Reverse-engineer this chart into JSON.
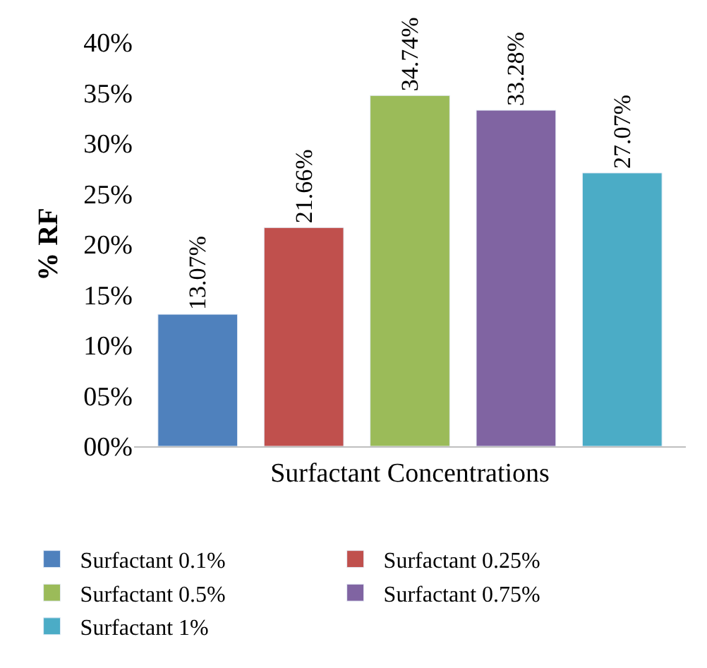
{
  "chart_data": {
    "type": "bar",
    "xlabel": "Surfactant Concentrations",
    "ylabel": "% RF",
    "categories": [
      null,
      null,
      null,
      null,
      null
    ],
    "series": [
      {
        "name": "Surfactant 0.1%",
        "color": "#4f81bd",
        "values": [
          13.07,
          null,
          null,
          null,
          null
        ],
        "value_labels": [
          "13.07%",
          null,
          null,
          null,
          null
        ]
      },
      {
        "name": "Surfactant 0.25%",
        "color": "#c0504d",
        "values": [
          null,
          21.66,
          null,
          null,
          null
        ],
        "value_labels": [
          null,
          "21.66%",
          null,
          null,
          null
        ]
      },
      {
        "name": "Surfactant 0.5%",
        "color": "#9bbb59",
        "values": [
          null,
          null,
          34.74,
          null,
          null
        ],
        "value_labels": [
          null,
          null,
          "34.74%",
          null,
          null
        ]
      },
      {
        "name": "Surfactant 0.75%",
        "color": "#8064a2",
        "values": [
          null,
          null,
          null,
          33.28,
          null
        ],
        "value_labels": [
          null,
          null,
          null,
          "33.28%",
          null
        ]
      },
      {
        "name": "Surfactant 1%",
        "color": "#4bacc6",
        "values": [
          null,
          null,
          null,
          null,
          27.07
        ],
        "value_labels": [
          null,
          null,
          null,
          null,
          "27.07%"
        ]
      }
    ],
    "ylim": [
      0,
      40
    ],
    "yticks": [
      {
        "value": 0,
        "label": "00%"
      },
      {
        "value": 5,
        "label": "05%"
      },
      {
        "value": 10,
        "label": "10%"
      },
      {
        "value": 15,
        "label": "15%"
      },
      {
        "value": 20,
        "label": "20%"
      },
      {
        "value": 25,
        "label": "25%"
      },
      {
        "value": 30,
        "label": "30%"
      },
      {
        "value": 35,
        "label": "35%"
      },
      {
        "value": 40,
        "label": "40%"
      }
    ],
    "legend": "bottom"
  }
}
